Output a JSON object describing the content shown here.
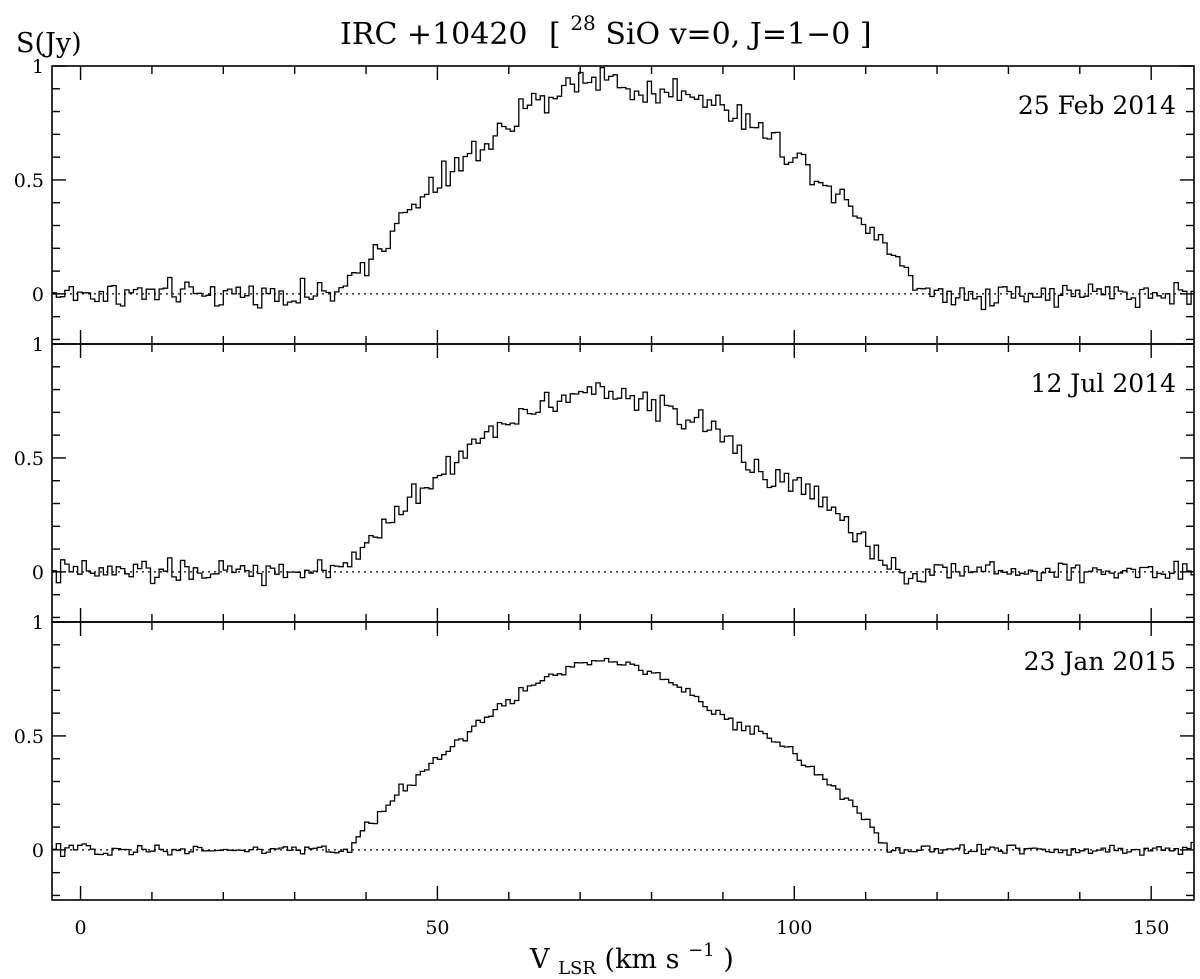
{
  "chart_data": {
    "type": "line",
    "step": true,
    "title": {
      "source": "IRC +10420",
      "line_open": "[",
      "isotope": "28",
      "molecule": "SiO v=0, J=1−0",
      "line_close": "]"
    },
    "ylabel": "S(Jy)",
    "xlabel": {
      "main": "V",
      "sub": "LSR",
      "unit_open": "(km s",
      "unit_exp": "−1",
      "unit_close": ")"
    },
    "xlim": [
      -4,
      156
    ],
    "ylim": [
      -0.22,
      1.0
    ],
    "x_ticks_major": [
      0,
      50,
      100,
      150
    ],
    "x_ticks_minor_step": 10,
    "y_ticks": [
      0,
      0.5,
      1
    ],
    "x_tick_labels": [
      "0",
      "50",
      "100",
      "150"
    ],
    "y_tick_labels": [
      "0",
      "0.5",
      "1"
    ],
    "zero_line": "dotted",
    "channel_width": 0.6,
    "panels": [
      {
        "date": "25 Feb 2014",
        "noise": 0.045,
        "shape": {
          "start": 37,
          "end": 118,
          "peak": 0.88,
          "peak_x": 75,
          "valley_x": 79,
          "valley_depth": 0.1
        }
      },
      {
        "date": "12 Jul 2014",
        "noise": 0.04,
        "shape": {
          "start": 37,
          "end": 113,
          "peak": 0.72,
          "peak_x": 66,
          "valley_x": 95,
          "valley_depth": 0.07
        }
      },
      {
        "date": "23 Jan 2015",
        "noise": 0.018,
        "shape": {
          "start": 38,
          "end": 113,
          "peak": 0.74,
          "peak_x": 70,
          "valley_x": 90,
          "valley_depth": 0.06
        }
      }
    ]
  }
}
